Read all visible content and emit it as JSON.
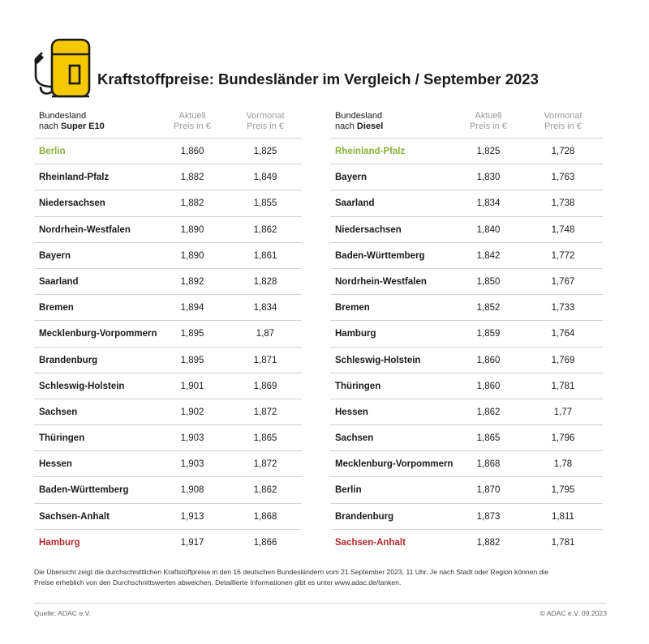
{
  "title": "Kraftstoffpreise: Bundesländer im Vergleich / September 2023",
  "colors": {
    "accent_yellow": "#f6c800",
    "highlight_green": "#8ab33a",
    "highlight_red": "#b3262d"
  },
  "icon": "fuel-pump-icon",
  "left_table": {
    "header": {
      "name_line1": "Bundesland",
      "name_line2_prefix": "nach ",
      "name_line2_bold": "Super E10",
      "col1_line1": "Aktuell",
      "col1_line2": "Preis in €",
      "col2_line1": "Vormonat",
      "col2_line2": "Preis in €"
    },
    "rows": [
      {
        "name": "Berlin",
        "current": "1,860",
        "previous": "1,825",
        "highlight": "green"
      },
      {
        "name": "Rheinland-Pfalz",
        "current": "1,882",
        "previous": "1,849"
      },
      {
        "name": "Niedersachsen",
        "current": "1,882",
        "previous": "1,855"
      },
      {
        "name": "Nordrhein-Westfalen",
        "current": "1,890",
        "previous": "1,862"
      },
      {
        "name": "Bayern",
        "current": "1,890",
        "previous": "1,861"
      },
      {
        "name": "Saarland",
        "current": "1,892",
        "previous": "1,828"
      },
      {
        "name": "Bremen",
        "current": "1,894",
        "previous": "1,834"
      },
      {
        "name": "Mecklenburg-Vorpommern",
        "current": "1,895",
        "previous": "1,87"
      },
      {
        "name": "Brandenburg",
        "current": "1,895",
        "previous": "1,871"
      },
      {
        "name": "Schleswig-Holstein",
        "current": "1,901",
        "previous": "1,869"
      },
      {
        "name": "Sachsen",
        "current": "1,902",
        "previous": "1,872"
      },
      {
        "name": "Thüringen",
        "current": "1,903",
        "previous": "1,865"
      },
      {
        "name": "Hessen",
        "current": "1,903",
        "previous": "1,872"
      },
      {
        "name": "Baden-Württemberg",
        "current": "1,908",
        "previous": "1,862"
      },
      {
        "name": "Sachsen-Anhalt",
        "current": "1,913",
        "previous": "1,868"
      },
      {
        "name": "Hamburg",
        "current": "1,917",
        "previous": "1,866",
        "highlight": "red"
      }
    ]
  },
  "right_table": {
    "header": {
      "name_line1": "Bundesland",
      "name_line2_prefix": "nach ",
      "name_line2_bold": "Diesel",
      "col1_line1": "Aktuell",
      "col1_line2": "Preis in €",
      "col2_line1": "Vormonat",
      "col2_line2": "Preis in €"
    },
    "rows": [
      {
        "name": "Rheinland-Pfalz",
        "current": "1,825",
        "previous": "1,728",
        "highlight": "green"
      },
      {
        "name": "Bayern",
        "current": "1,830",
        "previous": "1,763"
      },
      {
        "name": "Saarland",
        "current": "1,834",
        "previous": "1,738"
      },
      {
        "name": "Niedersachsen",
        "current": "1,840",
        "previous": "1,748"
      },
      {
        "name": "Baden-Württemberg",
        "current": "1,842",
        "previous": "1,772"
      },
      {
        "name": "Nordrhein-Westfalen",
        "current": "1,850",
        "previous": "1,767"
      },
      {
        "name": "Bremen",
        "current": "1,852",
        "previous": "1,733"
      },
      {
        "name": "Hamburg",
        "current": "1,859",
        "previous": "1,764"
      },
      {
        "name": "Schleswig-Holstein",
        "current": "1,860",
        "previous": "1,769"
      },
      {
        "name": "Thüringen",
        "current": "1,860",
        "previous": "1,781"
      },
      {
        "name": "Hessen",
        "current": "1,862",
        "previous": "1,77"
      },
      {
        "name": "Sachsen",
        "current": "1,865",
        "previous": "1,796"
      },
      {
        "name": "Mecklenburg-Vorpommern",
        "current": "1,868",
        "previous": "1,78"
      },
      {
        "name": "Berlin",
        "current": "1,870",
        "previous": "1,795"
      },
      {
        "name": "Brandenburg",
        "current": "1,873",
        "previous": "1,811"
      },
      {
        "name": "Sachsen-Anhalt",
        "current": "1,882",
        "previous": "1,781",
        "highlight": "red"
      }
    ]
  },
  "footnote_line1": "Die Übersicht zeigt die durchschnittlichen Kraftstoffpreise in den 16 deutschen Bundesländern vom 21.September 2023, 11 Uhr. Je nach Stadt oder Region können die",
  "footnote_line2": "Preise erheblich von den Durchschnittswerten abweichen. Detaillierte Informationen gibt es unter www.adac.de/tanken.",
  "source": "Quelle: ADAC e.V.",
  "copyright": "© ADAC e.V. 09.2023"
}
